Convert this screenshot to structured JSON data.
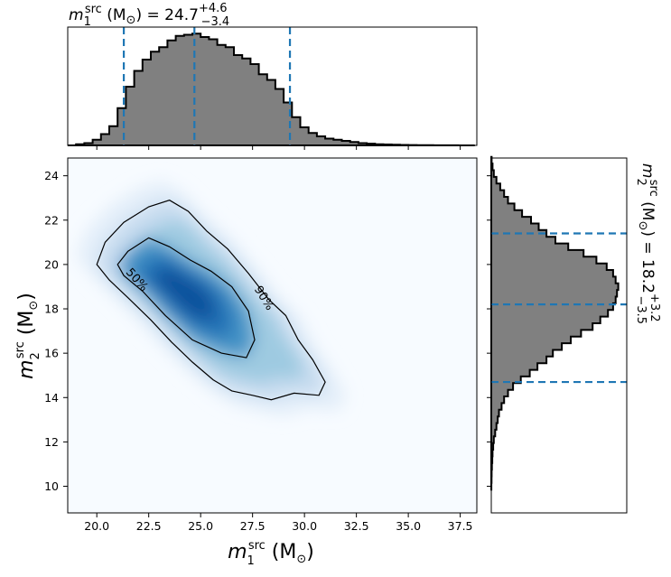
{
  "chart_data": [
    {
      "type": "heatmap",
      "panel": "joint",
      "xlabel": "m_1^src (M_⊙)",
      "ylabel": "m_2^src (M_⊙)",
      "xlim": [
        18.6,
        38.3
      ],
      "ylim": [
        8.8,
        24.8
      ],
      "xticks": [
        "20.0",
        "22.5",
        "25.0",
        "27.5",
        "30.0",
        "32.5",
        "35.0",
        "37.5"
      ],
      "yticks": [
        "10",
        "12",
        "14",
        "16",
        "18",
        "20",
        "22",
        "24"
      ],
      "colormap": "Blues",
      "contours": [
        {
          "label": "50%",
          "points": [
            [
              21.5,
              20.6
            ],
            [
              22.5,
              21.2
            ],
            [
              23.5,
              20.8
            ],
            [
              24.5,
              20.2
            ],
            [
              25.5,
              19.7
            ],
            [
              26.5,
              19.0
            ],
            [
              27.3,
              17.9
            ],
            [
              27.6,
              16.6
            ],
            [
              27.2,
              15.8
            ],
            [
              26.0,
              16.0
            ],
            [
              24.6,
              16.6
            ],
            [
              23.3,
              17.7
            ],
            [
              22.2,
              18.8
            ],
            [
              21.3,
              19.5
            ],
            [
              21.0,
              20.0
            ],
            [
              21.5,
              20.6
            ]
          ]
        },
        {
          "label": "90%",
          "points": [
            [
              20.0,
              20.0
            ],
            [
              20.4,
              21.0
            ],
            [
              21.3,
              21.9
            ],
            [
              22.5,
              22.6
            ],
            [
              23.5,
              22.9
            ],
            [
              24.4,
              22.4
            ],
            [
              25.3,
              21.5
            ],
            [
              26.3,
              20.7
            ],
            [
              27.3,
              19.6
            ],
            [
              28.3,
              18.4
            ],
            [
              29.1,
              17.7
            ],
            [
              29.7,
              16.6
            ],
            [
              30.4,
              15.7
            ],
            [
              31.0,
              14.7
            ],
            [
              30.7,
              14.1
            ],
            [
              29.5,
              14.2
            ],
            [
              28.4,
              13.9
            ],
            [
              27.5,
              14.1
            ],
            [
              26.5,
              14.3
            ],
            [
              25.6,
              14.8
            ],
            [
              24.6,
              15.6
            ],
            [
              23.6,
              16.5
            ],
            [
              22.6,
              17.5
            ],
            [
              21.5,
              18.5
            ],
            [
              20.6,
              19.3
            ],
            [
              20.0,
              20.0
            ]
          ]
        }
      ]
    },
    {
      "type": "bar",
      "panel": "marginal-top",
      "title": "m_1^src (M_⊙) = 24.7 +4.6 −3.4",
      "median": 24.7,
      "quantiles": [
        21.3,
        24.7,
        29.3
      ],
      "x": [
        18.6,
        19.0,
        19.4,
        19.8,
        20.2,
        20.6,
        21.0,
        21.4,
        21.8,
        22.2,
        22.6,
        23.0,
        23.4,
        23.8,
        24.2,
        24.6,
        25.0,
        25.4,
        25.8,
        26.2,
        26.6,
        27.0,
        27.4,
        27.8,
        28.2,
        28.6,
        29.0,
        29.4,
        29.8,
        30.2,
        30.6,
        31.0,
        31.4,
        31.8,
        32.2,
        32.6,
        33.0,
        33.4,
        33.8,
        34.2,
        34.6,
        35.0,
        35.4,
        35.8,
        36.2,
        36.6,
        37.0,
        37.4,
        37.8
      ],
      "values": [
        0.0,
        0.01,
        0.02,
        0.05,
        0.1,
        0.17,
        0.33,
        0.52,
        0.66,
        0.76,
        0.83,
        0.87,
        0.93,
        0.97,
        0.98,
        0.99,
        0.96,
        0.94,
        0.89,
        0.87,
        0.8,
        0.77,
        0.72,
        0.63,
        0.58,
        0.5,
        0.38,
        0.25,
        0.16,
        0.11,
        0.08,
        0.06,
        0.05,
        0.04,
        0.03,
        0.02,
        0.015,
        0.01,
        0.008,
        0.006,
        0.004,
        0.003,
        0.002,
        0.002,
        0.001,
        0.001,
        0.001,
        0.0,
        0.0
      ]
    },
    {
      "type": "bar",
      "panel": "marginal-right",
      "title": "m_2^src (M_⊙) = 18.2 +3.2 −3.5",
      "median": 18.2,
      "quantiles": [
        14.7,
        18.2,
        21.4
      ],
      "y": [
        24.7,
        24.4,
        24.1,
        23.8,
        23.5,
        23.2,
        22.9,
        22.6,
        22.3,
        22.0,
        21.7,
        21.4,
        21.1,
        20.8,
        20.5,
        20.2,
        19.9,
        19.6,
        19.3,
        19.0,
        18.7,
        18.4,
        18.1,
        17.8,
        17.5,
        17.2,
        16.9,
        16.6,
        16.3,
        16.0,
        15.7,
        15.4,
        15.1,
        14.8,
        14.5,
        14.2,
        13.9,
        13.6,
        13.3,
        13.0,
        12.7,
        12.4,
        12.1,
        11.8,
        11.5,
        11.2,
        10.9,
        10.6,
        10.3,
        10.0
      ],
      "values": [
        0.003,
        0.01,
        0.02,
        0.04,
        0.07,
        0.1,
        0.13,
        0.18,
        0.24,
        0.31,
        0.37,
        0.43,
        0.5,
        0.6,
        0.72,
        0.82,
        0.9,
        0.95,
        0.97,
        0.99,
        0.98,
        0.97,
        0.95,
        0.91,
        0.85,
        0.79,
        0.7,
        0.62,
        0.55,
        0.48,
        0.43,
        0.36,
        0.3,
        0.23,
        0.17,
        0.13,
        0.1,
        0.08,
        0.06,
        0.05,
        0.04,
        0.03,
        0.02,
        0.015,
        0.01,
        0.008,
        0.005,
        0.003,
        0.002,
        0.001
      ]
    }
  ]
}
